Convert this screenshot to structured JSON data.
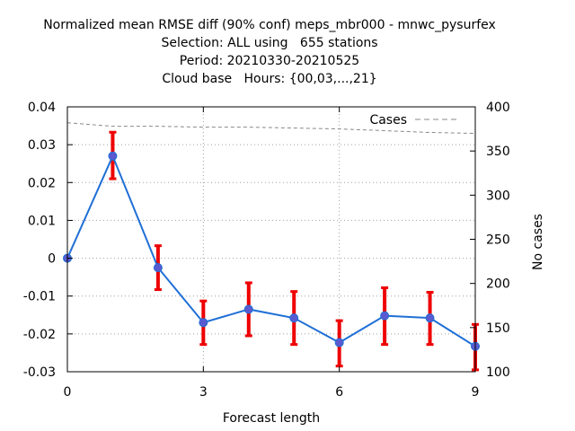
{
  "chart_data": {
    "type": "line",
    "title_lines": [
      "Normalized mean RMSE diff (90% conf) meps_mbr000 - mnwc_pysurfex",
      "Selection: ALL using   655 stations",
      "Period: 20210330-20210525",
      "Cloud base   Hours: {00,03,...,21}"
    ],
    "xlabel": "Forecast length",
    "y2label": "No cases",
    "xlim": [
      0,
      9
    ],
    "ylim": [
      -0.03,
      0.04
    ],
    "y2lim": [
      100,
      400
    ],
    "xticks": [
      0,
      3,
      6,
      9
    ],
    "yticks": [
      0.04,
      0.03,
      0.02,
      0.01,
      0,
      -0.01,
      -0.02,
      -0.03
    ],
    "ytick_labels": [
      "0.04",
      "0.03",
      "0.02",
      "0.01",
      "0",
      "-0.01",
      "-0.02",
      "-0.03"
    ],
    "y2ticks": [
      400,
      350,
      300,
      250,
      200,
      150,
      100
    ],
    "grid": true,
    "series": [
      {
        "name": "",
        "color": "#1f6fd6",
        "marker_color": "#5a5ad0",
        "errorbar_color": "#ee0000",
        "x": [
          0,
          1,
          2,
          3,
          4,
          5,
          6,
          7,
          8,
          9
        ],
        "y": [
          0.0,
          0.027,
          -0.0025,
          -0.017,
          -0.0135,
          -0.0158,
          -0.0223,
          -0.0152,
          -0.0158,
          -0.0233
        ],
        "err_low": [
          0.0,
          0.021,
          -0.0083,
          -0.0228,
          -0.0205,
          -0.0228,
          -0.0285,
          -0.0228,
          -0.0228,
          -0.0295
        ],
        "err_high": [
          0.0,
          0.0333,
          0.0033,
          -0.0113,
          -0.0065,
          -0.0088,
          -0.0165,
          -0.0078,
          -0.009,
          -0.0175
        ]
      },
      {
        "name": "Cases",
        "color": "#888888",
        "axis": "y2",
        "x": [
          0,
          1,
          2,
          3,
          4,
          5,
          6,
          7,
          8,
          9
        ],
        "y": [
          382,
          378,
          378,
          377,
          377,
          376,
          375,
          373,
          371,
          370
        ]
      }
    ]
  }
}
